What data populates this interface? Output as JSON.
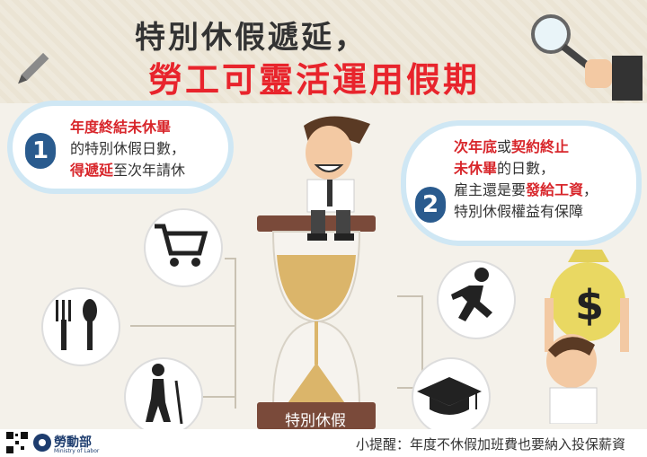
{
  "title": {
    "line1": "特別休假遞延，",
    "line2": "勞工可靈活運用假期"
  },
  "point1": {
    "number": "1",
    "line1": "年度終結未休畢",
    "line2": "的特別休假日數，",
    "line3_a": "得",
    "line3_b": "遞延",
    "line3_c": "至次年請休"
  },
  "point2": {
    "number": "2",
    "line1_a": "次年底",
    "line1_b": "或",
    "line1_c": "契約終止",
    "line2_a": "未休畢",
    "line2_b": "的日數，",
    "line3_a": "雇主還是要",
    "line3_b": "發給工資",
    "line3_c": "，",
    "line4": "特別休假權益有保障"
  },
  "hourglass": {
    "label": "特別休假"
  },
  "footer": {
    "tip": "小提醒：年度不休假加班費也要納入投保薪資",
    "logo": "勞動部",
    "logo_sub": "Ministry of Labor"
  },
  "icons": [
    "shopping-cart-icon",
    "fork-spoon-icon",
    "hiker-icon",
    "runner-icon",
    "graduation-cap-icon",
    "money-bag-icon"
  ],
  "colors": {
    "accent_red": "#e8242c",
    "accent_blue": "#2a5b8e",
    "cloud_outline": "#cfe7f4",
    "sand": "#dbb56a"
  }
}
